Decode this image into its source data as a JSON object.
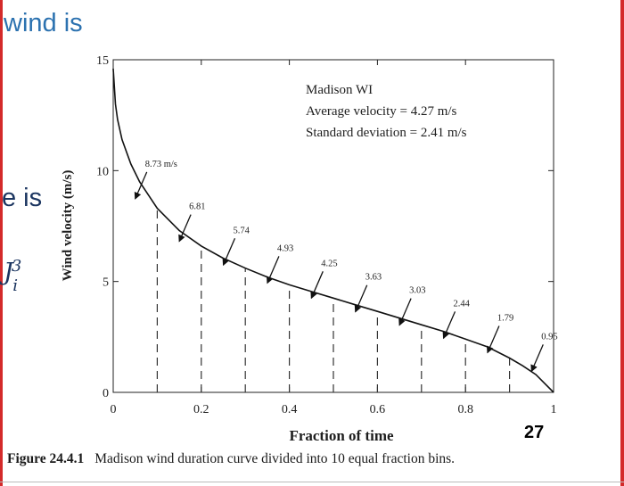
{
  "slide": {
    "fragment_1": "wind is",
    "fragment_2": "e is",
    "fragment_3_base": "J",
    "fragment_3_sub": "i",
    "fragment_3_sup": "3",
    "page_number": "27"
  },
  "caption": {
    "label": "Figure 24.4.1",
    "text": "Madison wind duration curve divided into 10 equal fraction bins."
  },
  "colors": {
    "frame": "#d42a2a",
    "slide_text": "#2c72b0",
    "curve": "#111111"
  },
  "chart_data": {
    "type": "line",
    "xlabel": "Fraction of time",
    "ylabel": "Wind velocity (m/s)",
    "xlim": [
      0,
      1
    ],
    "ylim": [
      0,
      15
    ],
    "x_ticks": [
      0,
      0.2,
      0.4,
      0.6,
      0.8,
      1
    ],
    "x_tick_labels": [
      "0",
      "0.2",
      "0.4",
      "0.6",
      "0.8",
      "1"
    ],
    "y_ticks": [
      0,
      5,
      10,
      15
    ],
    "y_tick_labels": [
      "0",
      "5",
      "10",
      "15"
    ],
    "series": [
      {
        "x": [
          0.0,
          0.005,
          0.01,
          0.02,
          0.04,
          0.06,
          0.08,
          0.1,
          0.15,
          0.2,
          0.25,
          0.3,
          0.35,
          0.4,
          0.45,
          0.5,
          0.55,
          0.6,
          0.65,
          0.7,
          0.75,
          0.8,
          0.85,
          0.9,
          0.93,
          0.96,
          0.98,
          1.0
        ],
        "y": [
          14.6,
          13.0,
          12.3,
          11.4,
          10.3,
          9.5,
          8.9,
          8.3,
          7.3,
          6.6,
          6.05,
          5.6,
          5.2,
          4.85,
          4.55,
          4.25,
          3.95,
          3.65,
          3.35,
          3.05,
          2.75,
          2.4,
          2.05,
          1.55,
          1.2,
          0.8,
          0.4,
          0.0
        ]
      }
    ],
    "bin_boundaries": [
      0.1,
      0.2,
      0.3,
      0.4,
      0.5,
      0.6,
      0.7,
      0.8,
      0.9
    ],
    "bin_annotations": [
      {
        "label": "8.73 m/s",
        "x": 0.05,
        "value": 8.73
      },
      {
        "label": "6.81",
        "x": 0.15,
        "value": 6.81
      },
      {
        "label": "5.74",
        "x": 0.25,
        "value": 5.74
      },
      {
        "label": "4.93",
        "x": 0.35,
        "value": 4.93
      },
      {
        "label": "4.25",
        "x": 0.45,
        "value": 4.25
      },
      {
        "label": "3.63",
        "x": 0.55,
        "value": 3.63
      },
      {
        "label": "3.03",
        "x": 0.65,
        "value": 3.03
      },
      {
        "label": "2.44",
        "x": 0.75,
        "value": 2.44
      },
      {
        "label": "1.79",
        "x": 0.85,
        "value": 1.79
      },
      {
        "label": "0.95",
        "x": 0.95,
        "value": 0.95
      }
    ],
    "info_lines": [
      "Madison WI",
      "Average velocity = 4.27  m/s",
      "Standard deviation = 2.41  m/s"
    ],
    "grid": false
  }
}
